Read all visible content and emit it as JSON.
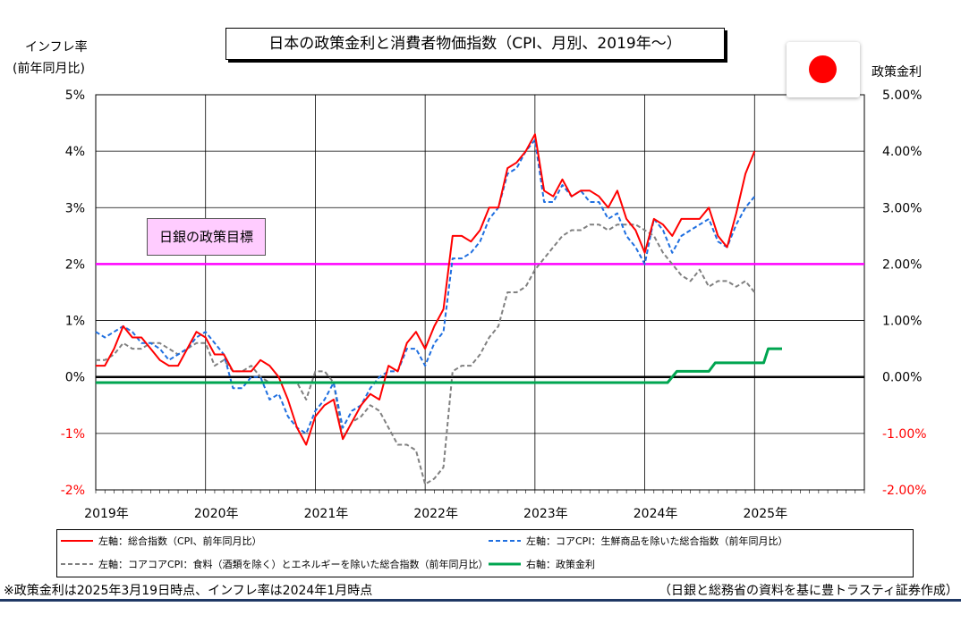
{
  "title": "日本の政策金利と消費者物価指数（CPI、月別、2019年～）",
  "left_axis_title": [
    "インフレ率",
    "(前年同月比)"
  ],
  "right_axis_title": "政策金利",
  "target_label": "日銀の政策目標",
  "flag_icon": "japan-flag-icon",
  "colors": {
    "cpi": "#ff0000",
    "core": "#1f6fe0",
    "corecore": "#808080",
    "rate": "#00a550",
    "target": "#ff00ff",
    "zero": "#000000",
    "negative_tick": "#ff0000",
    "rule": "#1f3864"
  },
  "footnote_left": "※政策金利は2025年3月19日時点、インフレ率は2024年1月時点",
  "footnote_right": "（日銀と総務省の資料を基に豊トラスティ証券作成）",
  "chart_data": {
    "type": "line",
    "title": "日本の政策金利と消費者物価指数（CPI、月別、2019年～）",
    "x_unit": "month index from 2019年1月",
    "x_range": [
      0,
      84
    ],
    "x_ticks": [
      0,
      12,
      24,
      36,
      48,
      60,
      72
    ],
    "x_tick_labels": [
      "2019年",
      "2020年",
      "2021年",
      "2022年",
      "2023年",
      "2024年",
      "2025年"
    ],
    "y_left": {
      "range": [
        -2,
        5
      ],
      "ticks": [
        5,
        4,
        3,
        2,
        1,
        0,
        -1,
        -2
      ],
      "tick_labels": [
        "5%",
        "4%",
        "3%",
        "2%",
        "1%",
        "0%",
        "-1%",
        "-2%"
      ]
    },
    "y_right": {
      "range": [
        -2,
        5
      ],
      "tick_labels": [
        "5.00%",
        "4.00%",
        "3.00%",
        "2.00%",
        "1.00%",
        "0.00%",
        "-1.00%",
        "-2.00%"
      ]
    },
    "grid": true,
    "legend_position": "bottom",
    "target_line": 2.0,
    "series": [
      {
        "name": "左軸：総合指数（CPI、前年同月比）",
        "axis": "left",
        "color": "#ff0000",
        "style": "solid",
        "x_start": 0,
        "values": [
          0.2,
          0.2,
          0.5,
          0.9,
          0.7,
          0.7,
          0.5,
          0.3,
          0.2,
          0.2,
          0.5,
          0.8,
          0.7,
          0.4,
          0.4,
          0.1,
          0.1,
          0.1,
          0.3,
          0.2,
          0.0,
          -0.4,
          -0.9,
          -1.2,
          -0.7,
          -0.5,
          -0.4,
          -1.1,
          -0.8,
          -0.5,
          -0.3,
          -0.4,
          0.2,
          0.1,
          0.6,
          0.8,
          0.5,
          0.9,
          1.2,
          2.5,
          2.5,
          2.4,
          2.6,
          3.0,
          3.0,
          3.7,
          3.8,
          4.0,
          4.3,
          3.3,
          3.2,
          3.5,
          3.2,
          3.3,
          3.3,
          3.2,
          3.0,
          3.3,
          2.8,
          2.6,
          2.2,
          2.8,
          2.7,
          2.5,
          2.8,
          2.8,
          2.8,
          3.0,
          2.5,
          2.3,
          2.9,
          3.6,
          4.0
        ]
      },
      {
        "name": "左軸：コアCPI：生鮮商品を除いた総合指数（前年同月比）",
        "axis": "left",
        "color": "#1f6fe0",
        "style": "dashed",
        "x_start": 0,
        "values": [
          0.8,
          0.7,
          0.8,
          0.9,
          0.8,
          0.6,
          0.6,
          0.5,
          0.3,
          0.4,
          0.5,
          0.7,
          0.8,
          0.6,
          0.4,
          -0.2,
          -0.2,
          0.0,
          0.0,
          -0.4,
          -0.3,
          -0.7,
          -0.9,
          -1.0,
          -0.6,
          -0.4,
          -0.1,
          -0.9,
          -0.6,
          -0.5,
          -0.2,
          0.0,
          0.1,
          0.1,
          0.5,
          0.5,
          0.2,
          0.6,
          0.8,
          2.1,
          2.1,
          2.2,
          2.4,
          2.8,
          3.0,
          3.6,
          3.7,
          4.0,
          4.2,
          3.1,
          3.1,
          3.4,
          3.2,
          3.3,
          3.1,
          3.1,
          2.8,
          2.9,
          2.5,
          2.3,
          2.0,
          2.8,
          2.6,
          2.2,
          2.5,
          2.6,
          2.7,
          2.8,
          2.4,
          2.3,
          2.7,
          3.0,
          3.2
        ]
      },
      {
        "name": "左軸：コアコアCPI：食料（酒類を除く）とエネルギーを除いた総合指数（前年同月比）",
        "axis": "left",
        "color": "#808080",
        "style": "dashed",
        "x_start": 0,
        "values": [
          0.3,
          0.3,
          0.4,
          0.6,
          0.5,
          0.5,
          0.6,
          0.6,
          0.5,
          0.4,
          0.5,
          0.6,
          0.6,
          0.2,
          0.3,
          0.1,
          0.1,
          0.2,
          0.0,
          -0.1,
          -0.1,
          -0.1,
          -0.1,
          -0.4,
          0.1,
          0.1,
          -0.1,
          -1.1,
          -0.8,
          -0.7,
          -0.5,
          -0.6,
          -0.9,
          -1.2,
          -1.2,
          -1.3,
          -1.9,
          -1.8,
          -1.6,
          0.1,
          0.2,
          0.2,
          0.4,
          0.7,
          0.9,
          1.5,
          1.5,
          1.6,
          1.9,
          2.1,
          2.3,
          2.5,
          2.6,
          2.6,
          2.7,
          2.7,
          2.6,
          2.7,
          2.7,
          2.7,
          2.6,
          2.5,
          2.2,
          2.0,
          1.8,
          1.7,
          1.9,
          1.6,
          1.7,
          1.7,
          1.6,
          1.7,
          1.5
        ]
      },
      {
        "name": "右軸：政策金利",
        "axis": "right",
        "color": "#00a550",
        "style": "solid",
        "points": [
          [
            0,
            -0.1
          ],
          [
            62,
            -0.1
          ],
          [
            62.5,
            -0.1
          ],
          [
            63.5,
            0.1
          ],
          [
            67,
            0.1
          ],
          [
            67.7,
            0.25
          ],
          [
            73,
            0.25
          ],
          [
            73.5,
            0.5
          ],
          [
            75,
            0.5
          ]
        ]
      }
    ]
  }
}
